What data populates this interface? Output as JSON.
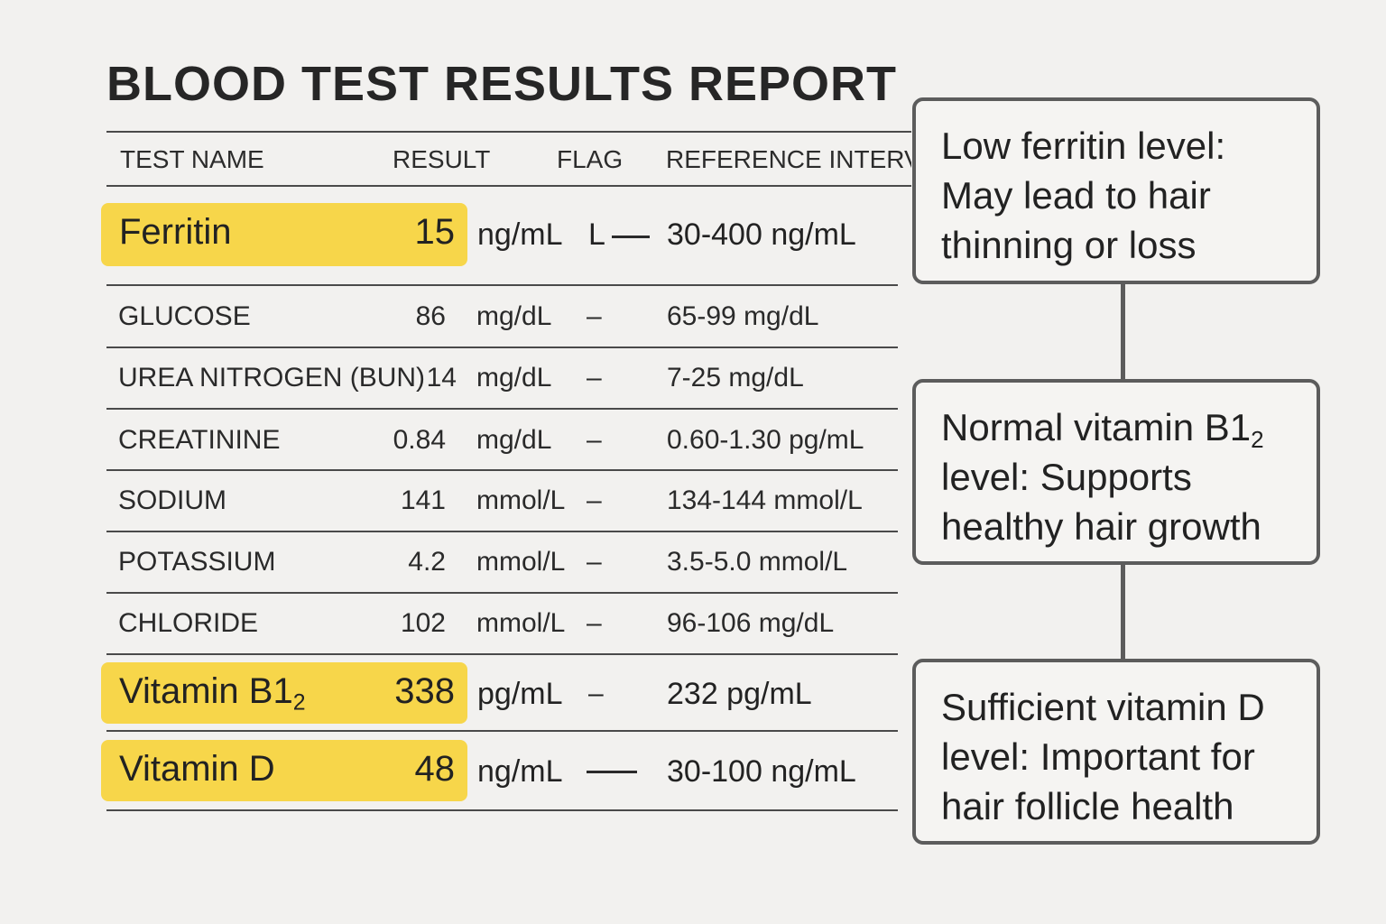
{
  "report": {
    "title": "BLOOD TEST RESULTS REPORT",
    "columns": {
      "test_name": "TEST NAME",
      "result": "RESULT",
      "flag": "FLAG",
      "reference": "REFERENCE INTERVA"
    },
    "highlight_color": "#f7d64a",
    "rows": [
      {
        "name": "Ferritin",
        "result": "15",
        "unit": "ng/mL",
        "flag": "L",
        "reference": "30-400 ng/mL",
        "highlighted": true
      },
      {
        "name": "GLUCOSE",
        "result": "86",
        "unit": "mg/dL",
        "flag": "–",
        "reference": "65-99 mg/dL",
        "highlighted": false
      },
      {
        "name": "UREA NITROGEN (BUN)",
        "result": "14",
        "unit": "mg/dL",
        "flag": "–",
        "reference": "7-25 mg/dL",
        "highlighted": false
      },
      {
        "name": "CREATININE",
        "result": "0.84",
        "unit": "mg/dL",
        "flag": "–",
        "reference": "0.60-1.30 pg/mL",
        "highlighted": false
      },
      {
        "name": "SODIUM",
        "result": "141",
        "unit": "mmol/L",
        "flag": "–",
        "reference": "134-144 mmol/L",
        "highlighted": false
      },
      {
        "name": "POTASSIUM",
        "result": "4.2",
        "unit": "mmol/L",
        "flag": "–",
        "reference": "3.5-5.0 mmol/L",
        "highlighted": false
      },
      {
        "name": "CHLORIDE",
        "result": "102",
        "unit": "mmol/L",
        "flag": "–",
        "reference": "96-106 mg/dL",
        "highlighted": false
      },
      {
        "name": "Vitamin B1",
        "name_sub": "2",
        "result": "338",
        "unit": "pg/mL",
        "flag": "–",
        "reference": "232 pg/mL",
        "highlighted": true
      },
      {
        "name": "Vitamin D",
        "result": "48",
        "unit": "ng/mL",
        "flag": "",
        "reference": "30-100 ng/mL",
        "highlighted": true
      }
    ]
  },
  "callouts": [
    {
      "line1": "Low ferritin level:",
      "line2": "May lead to hair",
      "line3": "thinning or loss"
    },
    {
      "line1": "Normal vitamin B1",
      "line1_sub": "2",
      "line2": "level: Supports",
      "line3": "healthy hair growth"
    },
    {
      "line1": "Sufficient vitamin D",
      "line2": "level: Important for",
      "line3": "hair follicle health"
    }
  ],
  "colors": {
    "background": "#f2f1ef",
    "highlight": "#f7d64a",
    "callout_border": "#5c5c5c"
  }
}
